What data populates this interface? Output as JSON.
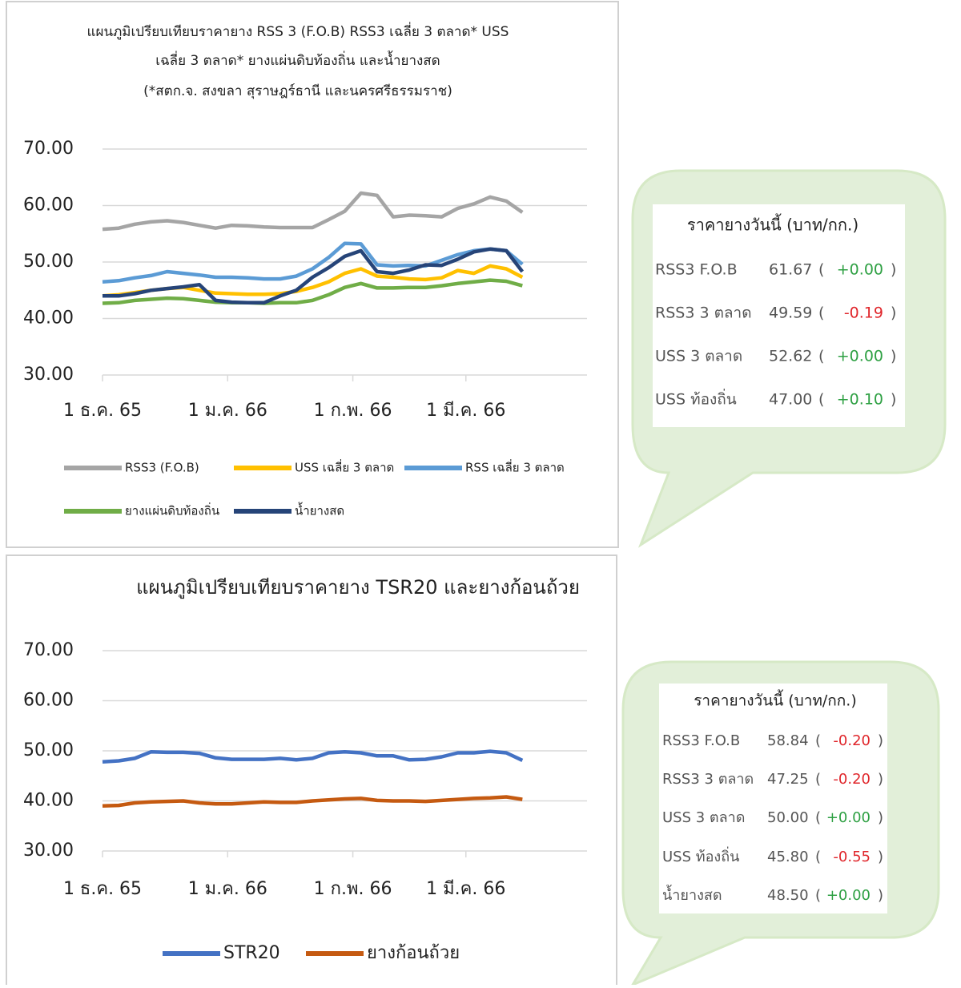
{
  "chart_data": [
    {
      "type": "line",
      "title": [
        "แผนภูมิเปรียบเทียบราคายาง RSS 3 (F.O.B) RSS3 เฉลี่ย 3 ตลาด* USS",
        "เฉลี่ย 3 ตลาด* ยางแผ่นดิบท้องถิ่น และน้ำยางสด"
      ],
      "subtitle": "(*สตก.จ. สงขลา สุราษฎร์ธานี และนครศรีธรรมราช)",
      "x": [
        0,
        4,
        8,
        12,
        16,
        20,
        24,
        28,
        32,
        36,
        40,
        44,
        48,
        52,
        56,
        60,
        64,
        68,
        72,
        76,
        80,
        84,
        88,
        92,
        96,
        100,
        104
      ],
      "xlim": [
        0,
        120
      ],
      "xticks": [
        {
          "value": 0,
          "label": "1 ธ.ค. 65"
        },
        {
          "value": 31,
          "label": "1 ม.ค. 66"
        },
        {
          "value": 62,
          "label": "1 ก.พ. 66"
        },
        {
          "value": 90,
          "label": "1 มี.ค. 66"
        }
      ],
      "ylim": [
        30,
        70
      ],
      "yticks": [
        {
          "value": 30,
          "label": "30.00"
        },
        {
          "value": 40,
          "label": "40.00"
        },
        {
          "value": 50,
          "label": "50.00"
        },
        {
          "value": 60,
          "label": "60.00"
        },
        {
          "value": 70,
          "label": "70.00"
        }
      ],
      "grid": true,
      "legend": "bottom",
      "series": [
        {
          "name": "RSS3 (F.O.B)",
          "color": "#a5a5a5",
          "values": [
            55.8,
            56,
            56.7,
            57.1,
            57.3,
            57,
            56.5,
            56,
            56.5,
            56.4,
            56.2,
            56.1,
            56.1,
            56.1,
            57.5,
            59,
            62.2,
            61.8,
            58,
            58.3,
            58.2,
            58,
            59.5,
            60.3,
            61.5,
            60.8,
            58.8
          ]
        },
        {
          "name": "USS เฉลี่ย 3 ตลาด",
          "color": "#ffc000",
          "values": [
            44,
            44.2,
            44.6,
            45,
            45.3,
            45.5,
            45,
            44.5,
            44.4,
            44.3,
            44.3,
            44.4,
            44.8,
            45.5,
            46.5,
            48,
            48.8,
            47.5,
            47.3,
            47,
            46.9,
            47.2,
            48.5,
            48,
            49.3,
            48.8,
            47.3
          ]
        },
        {
          "name": "RSS เฉลี่ย 3 ตลาด",
          "color": "#5b9bd5",
          "values": [
            46.5,
            46.7,
            47.2,
            47.6,
            48.3,
            48,
            47.7,
            47.3,
            47.3,
            47.2,
            47,
            47,
            47.5,
            48.8,
            50.8,
            53.3,
            53.2,
            49.5,
            49.3,
            49.4,
            49.3,
            50.3,
            51.3,
            52,
            52.3,
            52,
            49.6
          ]
        },
        {
          "name": "ยางแผ่นดิบท้องถิ่น",
          "color": "#70ad47",
          "values": [
            42.7,
            42.8,
            43.2,
            43.4,
            43.6,
            43.5,
            43.2,
            42.9,
            42.8,
            42.8,
            42.7,
            42.8,
            42.8,
            43.2,
            44.2,
            45.5,
            46.2,
            45.4,
            45.4,
            45.5,
            45.5,
            45.8,
            46.2,
            46.5,
            46.8,
            46.6,
            45.8
          ]
        },
        {
          "name": "น้ำยางสด",
          "color": "#264478",
          "values": [
            44,
            44,
            44.4,
            45,
            45.3,
            45.6,
            46,
            43.2,
            42.9,
            42.8,
            42.8,
            44,
            45,
            47.3,
            49,
            51,
            52,
            48.3,
            48,
            48.6,
            49.5,
            49.4,
            50.5,
            51.8,
            52.3,
            52,
            48.3
          ]
        }
      ]
    },
    {
      "type": "line",
      "title": [
        "แผนภูมิเปรียบเทียบราคายาง TSR20 และยางก้อนถ้วย"
      ],
      "x": [
        0,
        4,
        8,
        12,
        16,
        20,
        24,
        28,
        32,
        36,
        40,
        44,
        48,
        52,
        56,
        60,
        64,
        68,
        72,
        76,
        80,
        84,
        88,
        92,
        96,
        100,
        104
      ],
      "xlim": [
        0,
        120
      ],
      "xticks": [
        {
          "value": 0,
          "label": "1 ธ.ค. 65"
        },
        {
          "value": 31,
          "label": "1 ม.ค. 66"
        },
        {
          "value": 62,
          "label": "1 ก.พ. 66"
        },
        {
          "value": 90,
          "label": "1 มี.ค. 66"
        }
      ],
      "ylim": [
        30,
        70
      ],
      "yticks": [
        {
          "value": 30,
          "label": "30.00"
        },
        {
          "value": 40,
          "label": "40.00"
        },
        {
          "value": 50,
          "label": "50.00"
        },
        {
          "value": 60,
          "label": "60.00"
        },
        {
          "value": 70,
          "label": "70.00"
        }
      ],
      "grid": true,
      "legend": "bottom",
      "series": [
        {
          "name": "STR20",
          "color": "#4472c4",
          "values": [
            47.8,
            48,
            48.5,
            49.8,
            49.7,
            49.7,
            49.5,
            48.6,
            48.3,
            48.3,
            48.3,
            48.5,
            48.2,
            48.5,
            49.6,
            49.8,
            49.6,
            49,
            49,
            48.2,
            48.3,
            48.8,
            49.6,
            49.6,
            49.9,
            49.6,
            48.1
          ]
        },
        {
          "name": "ยางก้อนถ้วย",
          "color": "#c55a11",
          "values": [
            39,
            39.1,
            39.6,
            39.8,
            39.9,
            40,
            39.6,
            39.4,
            39.4,
            39.6,
            39.8,
            39.7,
            39.7,
            40,
            40.2,
            40.4,
            40.5,
            40.1,
            40,
            40,
            39.9,
            40.1,
            40.3,
            40.5,
            40.6,
            40.8,
            40.3
          ]
        }
      ]
    }
  ],
  "price_panels": [
    {
      "title": "ราคายางวันนี้ (บาท/กก.)",
      "open": "(",
      "close": ")",
      "rows": [
        {
          "name": "RSS3 F.O.B",
          "price": "61.67",
          "change": "+0.00"
        },
        {
          "name": "RSS3 3 ตลาด",
          "price": "49.59",
          "change": "-0.19"
        },
        {
          "name": "USS 3 ตลาด",
          "price": "52.62",
          "change": "+0.00"
        },
        {
          "name": "USS ท้องถิ่น",
          "price": "47.00",
          "change": "+0.10"
        }
      ]
    },
    {
      "title": "ราคายางวันนี้ (บาท/กก.)",
      "open": "(",
      "close": ")",
      "rows": [
        {
          "name": "RSS3 F.O.B",
          "price": "58.84",
          "change": "-0.20"
        },
        {
          "name": "RSS3 3 ตลาด",
          "price": "47.25",
          "change": "-0.20"
        },
        {
          "name": "USS 3 ตลาด",
          "price": "50.00",
          "change": "+0.00"
        },
        {
          "name": "USS ท้องถิ่น",
          "price": "45.80",
          "change": "-0.55"
        },
        {
          "name": "น้ำยางสด",
          "price": "48.50",
          "change": "+0.00"
        }
      ]
    }
  ]
}
